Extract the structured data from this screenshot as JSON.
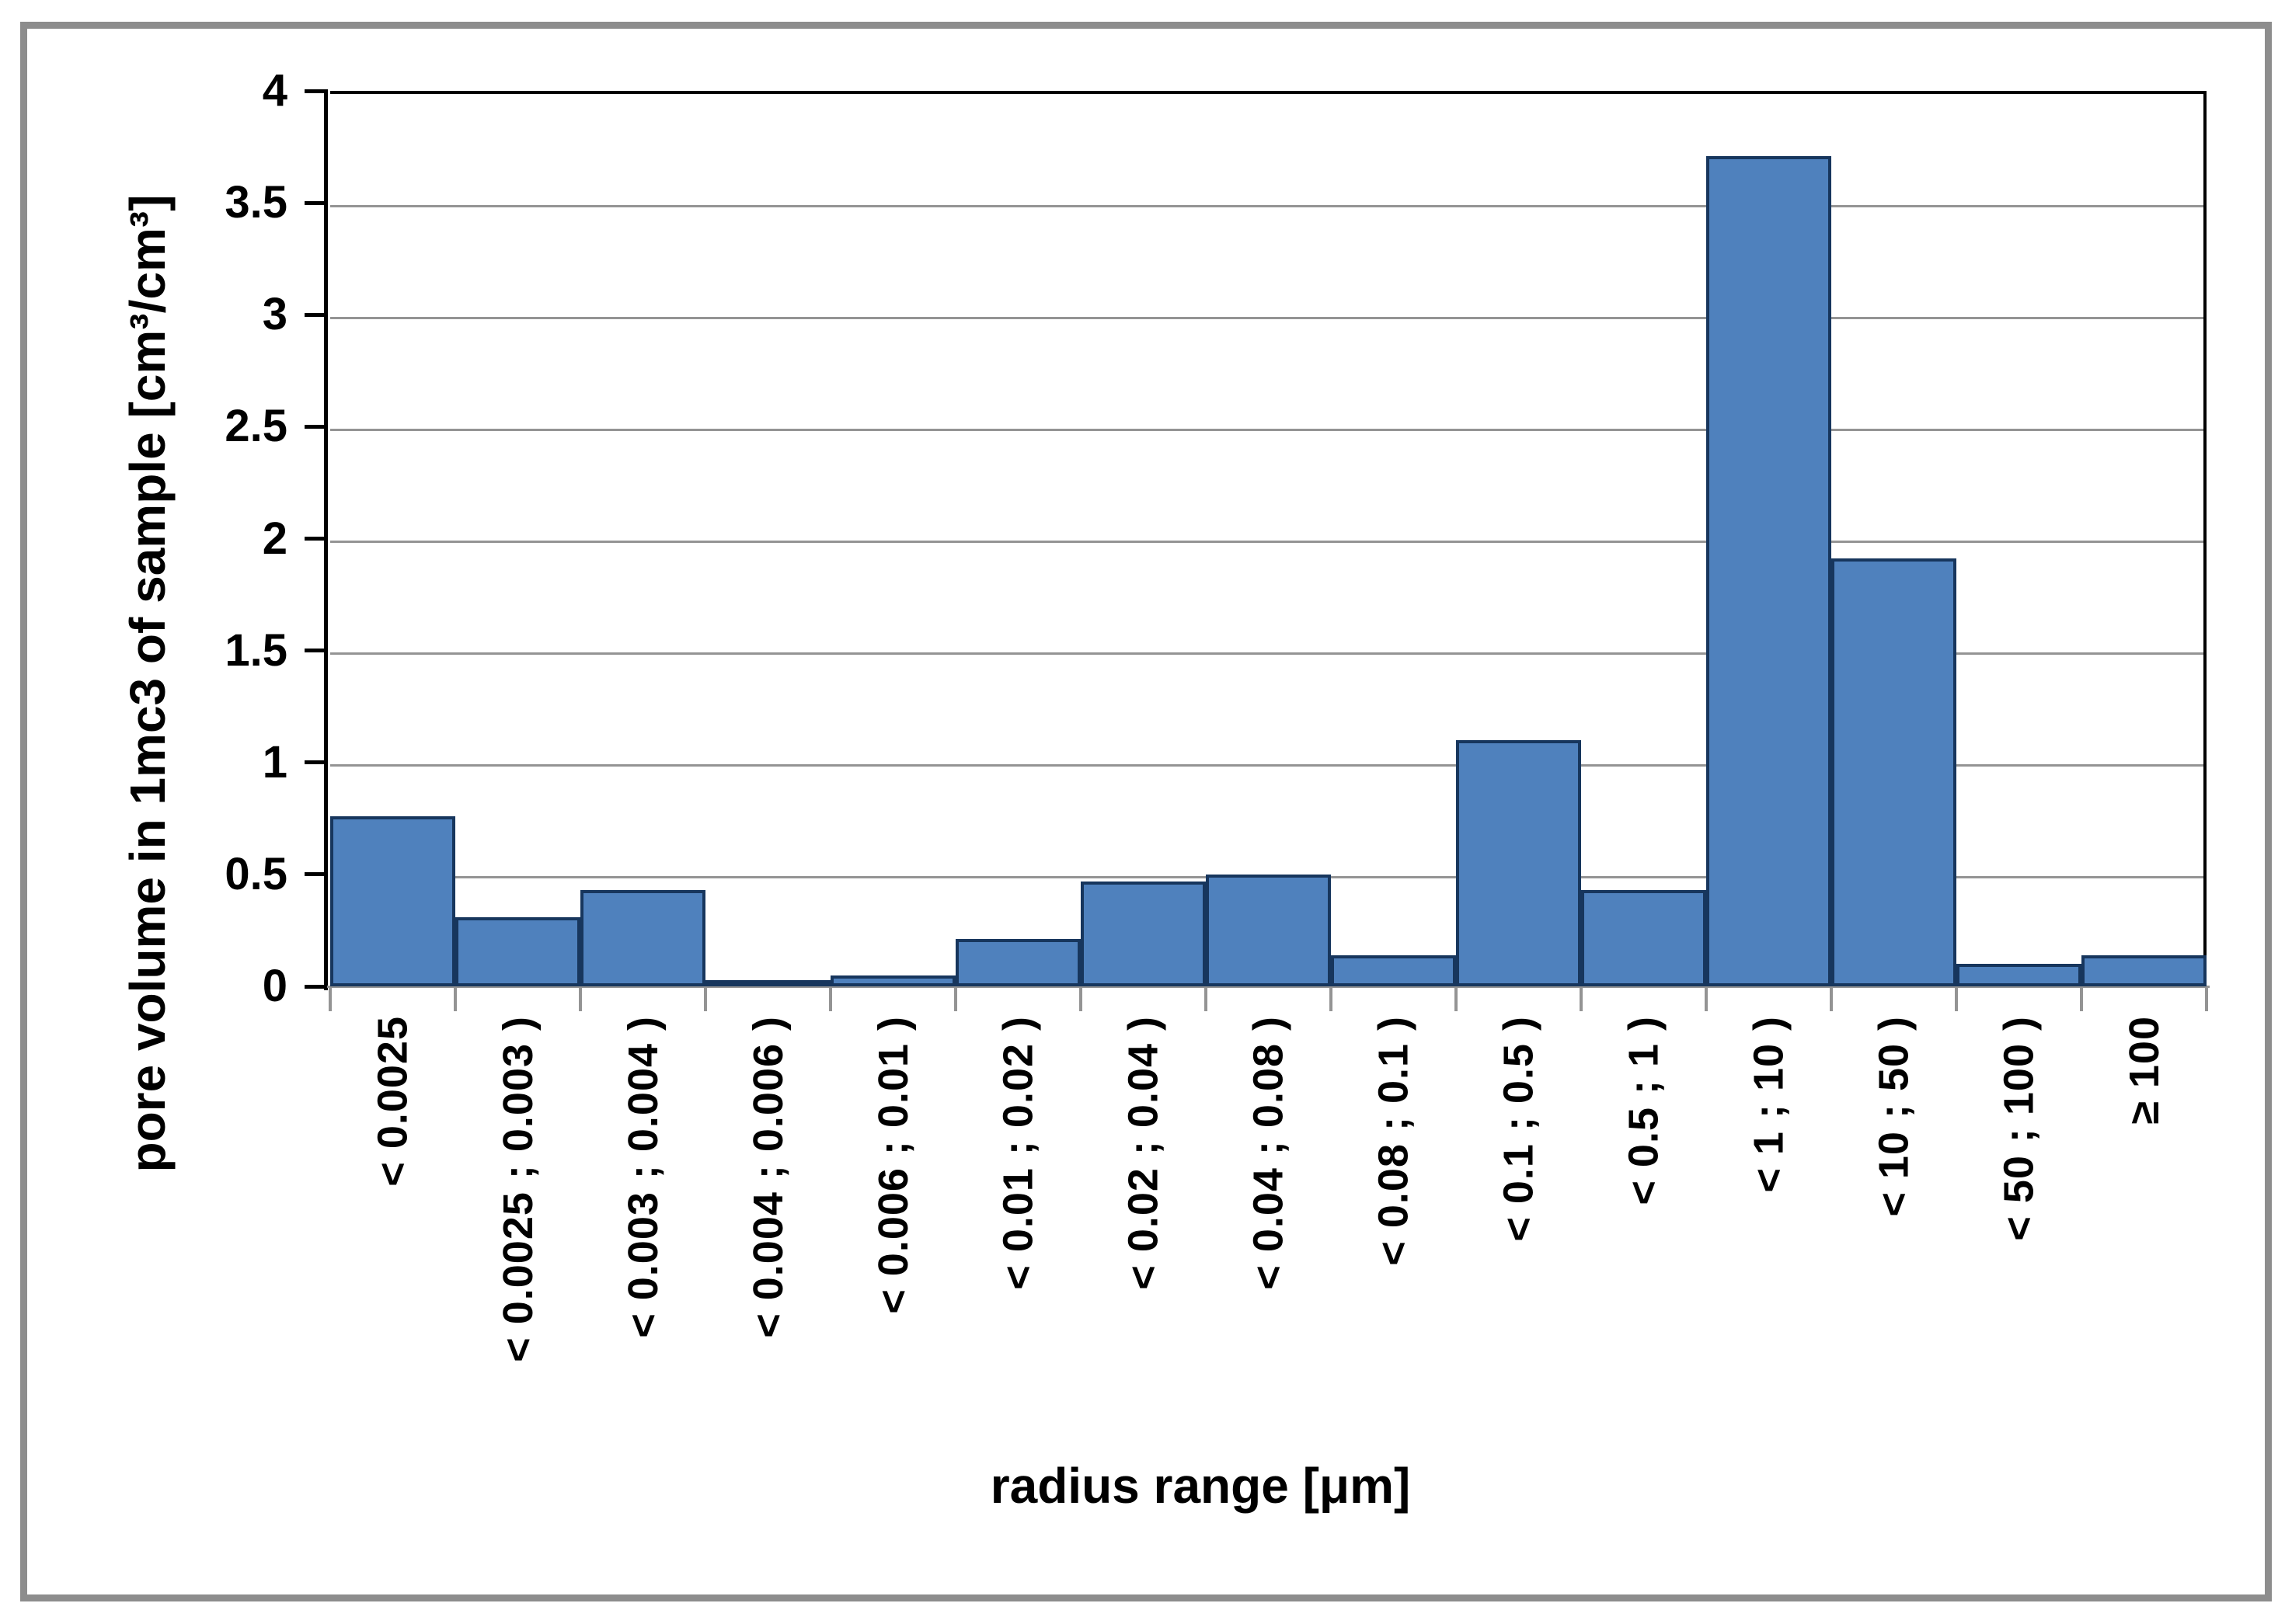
{
  "chart_data": {
    "type": "bar",
    "title": "",
    "xlabel": "radius range [μm]",
    "ylabel": "pore volume in 1mc3 of sample [cm³/cm³]",
    "categories": [
      "< 0.0025",
      "< 0.0025 ; 0.003 )",
      "< 0.003 ; 0.004 )",
      "< 0.004 ; 0.006 )",
      "< 0.006 ; 0.01 )",
      "< 0.01 ; 0.02 )",
      "< 0.02 ; 0.04 )",
      "< 0.04 ; 0.08 )",
      "< 0.08 ; 0.1 )",
      "< 0.1 ; 0.5 )",
      "< 0.5 ; 1 )",
      "< 1 ; 10 )",
      "< 10 ; 50 )",
      "< 50 ; 100 )",
      "≥ 100"
    ],
    "values": [
      0.76,
      0.31,
      0.43,
      0.01,
      0.05,
      0.21,
      0.47,
      0.5,
      0.14,
      1.1,
      0.43,
      3.71,
      1.91,
      0.1,
      0.14
    ],
    "ylim": [
      0,
      4
    ],
    "ytick_step": 0.5,
    "yticks": [
      "0",
      "0.5",
      "1",
      "1.5",
      "2",
      "2.5",
      "3",
      "3.5",
      "4"
    ],
    "grid": true,
    "legend": false,
    "bar_fill": "#4f81bd",
    "bar_border": "#17365d",
    "gridline_color": "#949494",
    "value_axis_color": "#000000",
    "category_axis_color": "#949494",
    "frame_color": "#8d8d8d"
  }
}
